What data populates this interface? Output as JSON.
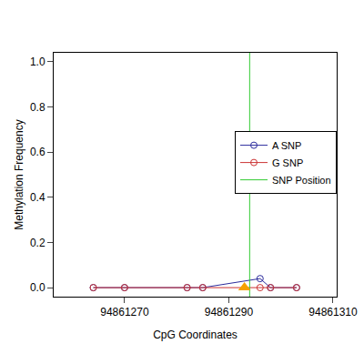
{
  "chart_data": {
    "type": "line",
    "x_label": "CpG Coordinates",
    "y_label": "Methylation Frequency",
    "x": [
      94861264,
      94861270,
      94861282,
      94861285,
      94861296,
      94861298,
      94861303
    ],
    "series": [
      {
        "name": "A SNP",
        "color": "#2b2b9c",
        "marker": "circle-open",
        "values": [
          0,
          0,
          0,
          0,
          0.04,
          0,
          0
        ]
      },
      {
        "name": "G SNP",
        "color": "#cc3333",
        "marker": "circle-open",
        "values": [
          0,
          0,
          0,
          0,
          0,
          0,
          0
        ]
      }
    ],
    "snp_line": {
      "name": "SNP Position",
      "color": "#33cc33",
      "x": 94861294
    },
    "snp_marker": {
      "x": 94861293,
      "y": 0,
      "color": "#f5a000",
      "marker": "triangle-up"
    },
    "xlim": [
      94861256.4,
      94861310.7
    ],
    "xticks": [
      94861270,
      94861290,
      94861310
    ],
    "ylim": [
      -0.04,
      1.04
    ],
    "yticks": [
      {
        "value": 0,
        "label": "0.0"
      },
      {
        "value": 0.2,
        "label": "0.2"
      },
      {
        "value": 0.4,
        "label": "0.4"
      },
      {
        "value": 0.6,
        "label": "0.6"
      },
      {
        "value": 0.8,
        "label": "0.8"
      },
      {
        "value": 1,
        "label": "1.0"
      }
    ],
    "legend": "right",
    "grid": false
  }
}
